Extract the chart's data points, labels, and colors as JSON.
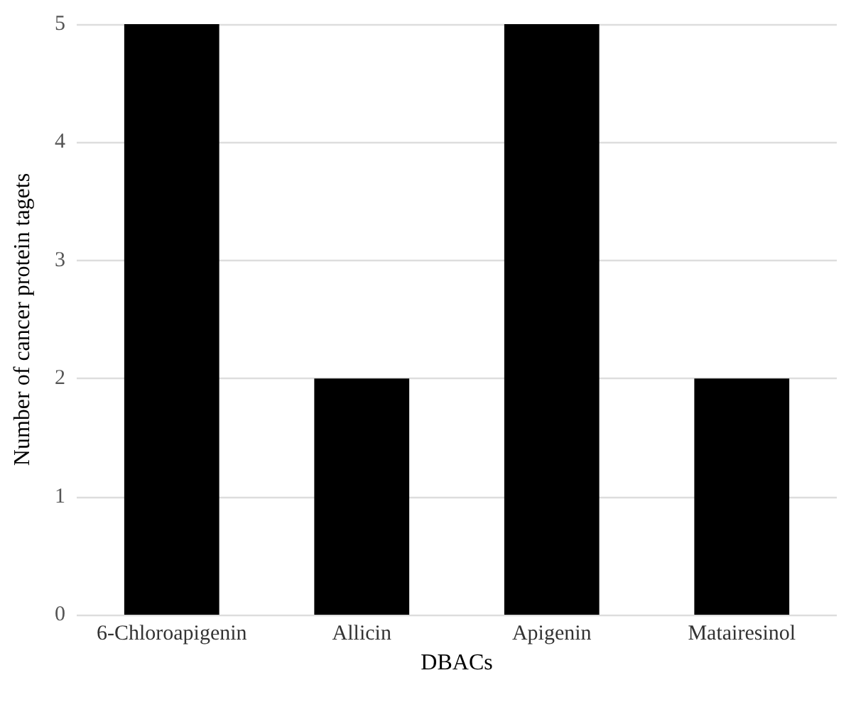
{
  "chart_data": {
    "type": "bar",
    "xlabel": "DBACs",
    "ylabel": "Number of cancer protein tagets",
    "categories": [
      "6-Chloroapigenin",
      "Allicin",
      "Apigenin",
      "Matairesinol"
    ],
    "values": [
      5,
      2,
      5,
      2
    ],
    "color": "#000000",
    "ylim": [
      0,
      5
    ],
    "yticks": [
      0,
      1,
      2,
      3,
      4,
      5
    ],
    "grid": "y"
  }
}
